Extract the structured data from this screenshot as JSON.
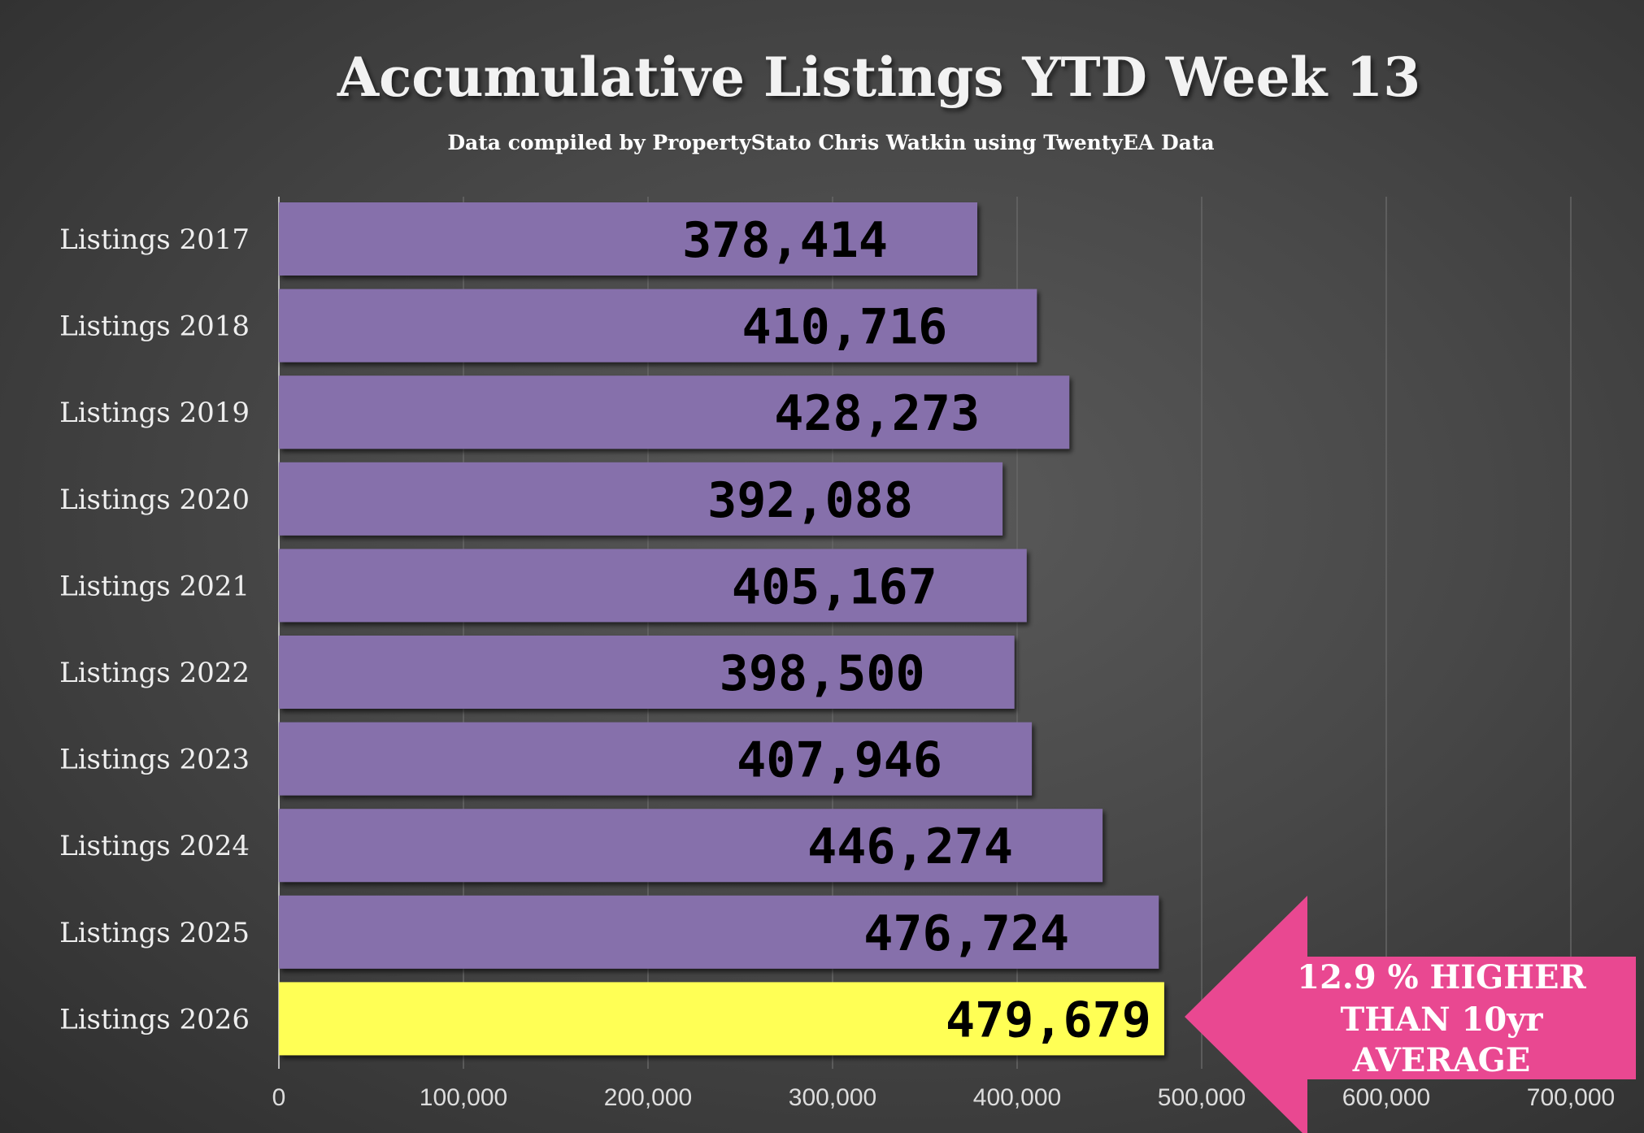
{
  "chart_data": {
    "type": "bar",
    "orientation": "horizontal",
    "title": "Accumulative Listings YTD Week 13",
    "subtitle": "Data compiled by PropertyStato Chris Watkin using TwentyEA Data",
    "categories": [
      "Listings 2017",
      "Listings 2018",
      "Listings 2019",
      "Listings 2020",
      "Listings 2021",
      "Listings 2022",
      "Listings 2023",
      "Listings 2024",
      "Listings 2025",
      "Listings 2026"
    ],
    "values": [
      378414,
      410716,
      428273,
      392088,
      405167,
      398500,
      407946,
      446274,
      476724,
      479679
    ],
    "value_labels": [
      "378,414",
      "410,716",
      "428,273",
      "392,088",
      "405,167",
      "398,500",
      "407,946",
      "446,274",
      "476,724",
      "479,679"
    ],
    "xlim": [
      0,
      700000
    ],
    "x_ticks": [
      "0",
      "100,000",
      "200,000",
      "300,000",
      "400,000",
      "500,000",
      "600,000",
      "700,000"
    ],
    "grid": true,
    "colors": {
      "bar": "#8670ab",
      "highlight": "#ffff55",
      "callout": "#e94891"
    },
    "highlight_index": 9,
    "annotation": {
      "lines": [
        "12.9 % HIGHER",
        "THAN 10yr",
        "AVERAGE"
      ]
    }
  }
}
